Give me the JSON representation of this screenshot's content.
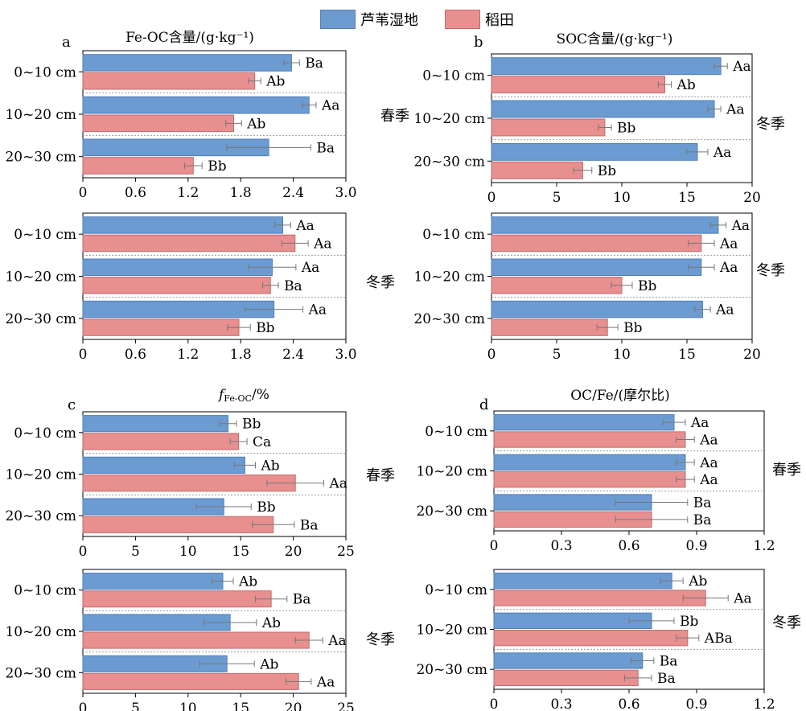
{
  "legend": {
    "reed": {
      "label": "芦苇湿地",
      "color": "#6b9bd1"
    },
    "paddy": {
      "label": "稻田",
      "color": "#e88f8f"
    }
  },
  "chart_data": [
    {
      "type": "bar",
      "orientation": "horizontal",
      "panel_letter": "a",
      "title": "Fe-OC含量/(g·kg⁻¹)",
      "season": "春季",
      "xlim": [
        0,
        3.0
      ],
      "xticks": [
        "0",
        "0.6",
        "1.2",
        "1.8",
        "2.4",
        "3.0"
      ],
      "categories": [
        "0~10 cm",
        "10~20 cm",
        "20~30 cm"
      ],
      "series": [
        {
          "name": "芦苇湿地",
          "values": [
            2.38,
            2.58,
            2.12
          ],
          "errors": [
            0.09,
            0.08,
            0.48
          ],
          "labels": [
            "Ba",
            "Aa",
            "Ba"
          ]
        },
        {
          "name": "稻田",
          "values": [
            1.96,
            1.72,
            1.26
          ],
          "errors": [
            0.07,
            0.09,
            0.1
          ],
          "labels": [
            "Ab",
            "Ab",
            "Bb"
          ]
        }
      ]
    },
    {
      "type": "bar",
      "orientation": "horizontal",
      "panel_letter": "b",
      "title": "SOC含量/(g·kg⁻¹)",
      "season": "冬季",
      "xlim": [
        0,
        20
      ],
      "xticks": [
        "0",
        "5",
        "10",
        "15",
        "20"
      ],
      "categories": [
        "0~10 cm",
        "10~20 cm",
        "20~30 cm"
      ],
      "series": [
        {
          "name": "芦苇湿地",
          "values": [
            17.6,
            17.1,
            15.8
          ],
          "errors": [
            0.5,
            0.5,
            0.8
          ],
          "labels": [
            "Aa",
            "Aa",
            "Aa"
          ]
        },
        {
          "name": "稻田",
          "values": [
            13.3,
            8.7,
            7.0
          ],
          "errors": [
            0.5,
            0.5,
            0.7
          ],
          "labels": [
            "Ab",
            "Bb",
            "Bb"
          ]
        }
      ]
    },
    {
      "type": "bar",
      "orientation": "horizontal",
      "panel_letter": "",
      "title": "",
      "season": "冬季",
      "xlim": [
        0,
        3.0
      ],
      "xticks": [
        "0",
        "0.6",
        "1.2",
        "1.8",
        "2.4",
        "3.0"
      ],
      "categories": [
        "0~10 cm",
        "10~20 cm",
        "20~30 cm"
      ],
      "series": [
        {
          "name": "芦苇湿地",
          "values": [
            2.28,
            2.16,
            2.18
          ],
          "errors": [
            0.09,
            0.27,
            0.33
          ],
          "labels": [
            "Aa",
            "Aa",
            "Aa"
          ]
        },
        {
          "name": "稻田",
          "values": [
            2.42,
            2.14,
            1.78
          ],
          "errors": [
            0.15,
            0.09,
            0.13
          ],
          "labels": [
            "Aa",
            "Ba",
            "Bb"
          ]
        }
      ]
    },
    {
      "type": "bar",
      "orientation": "horizontal",
      "panel_letter": "",
      "title": "",
      "season": "冬季",
      "xlim": [
        0,
        20
      ],
      "xticks": [
        "0",
        "5",
        "10",
        "15",
        "20"
      ],
      "categories": [
        "0~10 cm",
        "10~20 cm",
        "20~30 cm"
      ],
      "series": [
        {
          "name": "芦苇湿地",
          "values": [
            17.4,
            16.1,
            16.2
          ],
          "errors": [
            0.6,
            1.0,
            0.6
          ],
          "labels": [
            "Aa",
            "Aa",
            "Aa"
          ]
        },
        {
          "name": "稻田",
          "values": [
            16.1,
            10.0,
            8.9
          ],
          "errors": [
            1.0,
            0.8,
            0.8
          ],
          "labels": [
            "Aa",
            "Bb",
            "Bb"
          ]
        }
      ]
    },
    {
      "type": "bar",
      "orientation": "horizontal",
      "panel_letter": "c",
      "title": "fFe-OC/%",
      "title_parts": {
        "italic": "f",
        "sub": "Fe-OC",
        "rest": "/%"
      },
      "season": "春季",
      "xlim": [
        0,
        25
      ],
      "xticks": [
        "0",
        "5",
        "10",
        "15",
        "20",
        "25"
      ],
      "categories": [
        "0~10 cm",
        "10~20 cm",
        "20~30 cm"
      ],
      "series": [
        {
          "name": "芦苇湿地",
          "values": [
            13.8,
            15.4,
            13.4
          ],
          "errors": [
            0.8,
            1.0,
            2.6
          ],
          "labels": [
            "Bb",
            "Ab",
            "Bb"
          ]
        },
        {
          "name": "稻田",
          "values": [
            14.8,
            20.2,
            18.1
          ],
          "errors": [
            0.8,
            2.7,
            2.0
          ],
          "labels": [
            "Ca",
            "Aa",
            "Ba"
          ]
        }
      ]
    },
    {
      "type": "bar",
      "orientation": "horizontal",
      "panel_letter": "d",
      "title": "OC/Fe/(摩尔比)",
      "season": "春季",
      "xlim": [
        0,
        1.2
      ],
      "xticks": [
        "0",
        "0.3",
        "0.6",
        "0.9",
        "1.2"
      ],
      "categories": [
        "0~10 cm",
        "10~20 cm",
        "20~30 cm"
      ],
      "series": [
        {
          "name": "芦苇湿地",
          "values": [
            0.8,
            0.85,
            0.7
          ],
          "errors": [
            0.05,
            0.04,
            0.16
          ],
          "labels": [
            "Aa",
            "Aa",
            "Ba"
          ]
        },
        {
          "name": "稻田",
          "values": [
            0.85,
            0.85,
            0.7
          ],
          "errors": [
            0.04,
            0.04,
            0.16
          ],
          "labels": [
            "Aa",
            "Aa",
            "Ba"
          ]
        }
      ]
    },
    {
      "type": "bar",
      "orientation": "horizontal",
      "panel_letter": "",
      "title": "",
      "season": "冬季",
      "xlim": [
        0,
        25
      ],
      "xticks": [
        "0",
        "5",
        "10",
        "15",
        "20",
        "25"
      ],
      "categories": [
        "0~10 cm",
        "10~20 cm",
        "20~30 cm"
      ],
      "series": [
        {
          "name": "芦苇湿地",
          "values": [
            13.3,
            14.0,
            13.7
          ],
          "errors": [
            1.0,
            2.5,
            2.6
          ],
          "labels": [
            "Ab",
            "Ab",
            "Ab"
          ]
        },
        {
          "name": "稻田",
          "values": [
            17.9,
            21.5,
            20.5
          ],
          "errors": [
            1.5,
            1.3,
            1.2
          ],
          "labels": [
            "Ba",
            "Aa",
            "Aa"
          ]
        }
      ]
    },
    {
      "type": "bar",
      "orientation": "horizontal",
      "panel_letter": "",
      "title": "",
      "season": "冬季",
      "xlim": [
        0,
        1.2
      ],
      "xticks": [
        "0",
        "0.3",
        "0.6",
        "0.9",
        "1.2"
      ],
      "categories": [
        "0~10 cm",
        "10~20 cm",
        "20~30 cm"
      ],
      "series": [
        {
          "name": "芦苇湿地",
          "values": [
            0.79,
            0.7,
            0.66
          ],
          "errors": [
            0.05,
            0.1,
            0.05
          ],
          "labels": [
            "Ab",
            "Bb",
            "Ba"
          ]
        },
        {
          "name": "稻田",
          "values": [
            0.94,
            0.86,
            0.64
          ],
          "errors": [
            0.1,
            0.05,
            0.06
          ],
          "labels": [
            "Aa",
            "ABa",
            "Ba"
          ]
        }
      ]
    }
  ]
}
